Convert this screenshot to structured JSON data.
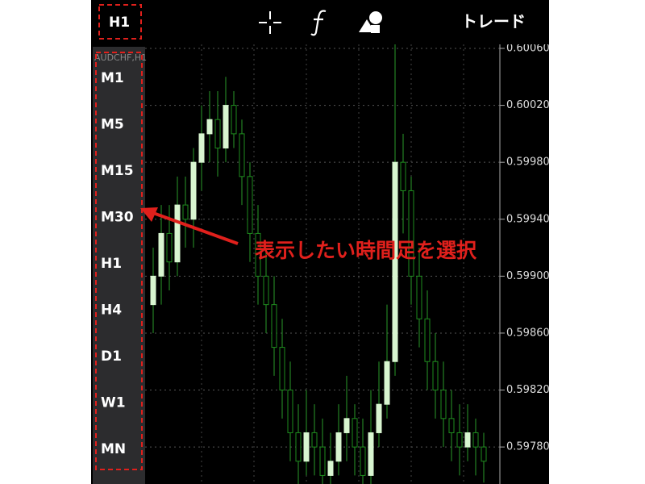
{
  "top_bar": {
    "timeframe": "H1",
    "trade": "トレード"
  },
  "timeframe_menu": {
    "items": [
      "M1",
      "M5",
      "M15",
      "M30",
      "H1",
      "H4",
      "D1",
      "W1",
      "MN"
    ]
  },
  "annotation": "表示したい時間足を選択",
  "chart_data": {
    "type": "candlestick",
    "symbol": "AUDCHF,H1",
    "open": [
      0.5988,
      0.599,
      0.5993,
      0.5991,
      0.5995,
      0.5994,
      0.5998,
      0.6,
      0.6001,
      0.5999,
      0.6002,
      0.6,
      0.5997,
      0.5993,
      0.599,
      0.5988,
      0.5985,
      0.5982,
      0.5979,
      0.5977,
      0.5979,
      0.5978,
      0.5976,
      0.5977,
      0.5979,
      0.598,
      0.5978,
      0.5976,
      0.5979,
      0.5981,
      0.5984,
      0.5998,
      0.5996,
      0.599,
      0.5987,
      0.5984,
      0.5982,
      0.598,
      0.5979,
      0.5978,
      0.5979,
      0.5978
    ],
    "high": [
      0.5992,
      0.5995,
      0.5995,
      0.5997,
      0.5997,
      0.5999,
      0.6002,
      0.6003,
      0.6003,
      0.6004,
      0.6003,
      0.6001,
      0.5998,
      0.5995,
      0.5992,
      0.599,
      0.5987,
      0.5984,
      0.5981,
      0.5982,
      0.5981,
      0.598,
      0.5979,
      0.5981,
      0.5983,
      0.5981,
      0.598,
      0.5982,
      0.5984,
      0.5988,
      0.6007,
      0.6,
      0.5997,
      0.5992,
      0.5989,
      0.5986,
      0.5984,
      0.5982,
      0.5981,
      0.5981,
      0.598,
      0.5979
    ],
    "low": [
      0.5986,
      0.5988,
      0.5989,
      0.599,
      0.5992,
      0.5992,
      0.5996,
      0.5998,
      0.5997,
      0.5998,
      0.5999,
      0.5995,
      0.5991,
      0.5988,
      0.5986,
      0.5983,
      0.598,
      0.5977,
      0.5975,
      0.5976,
      0.5976,
      0.5975,
      0.5975,
      0.5976,
      0.5977,
      0.5976,
      0.5975,
      0.5975,
      0.5978,
      0.598,
      0.5983,
      0.5993,
      0.5988,
      0.5985,
      0.5982,
      0.598,
      0.5978,
      0.5977,
      0.5976,
      0.5977,
      0.5976,
      0.59755
    ],
    "close": [
      0.599,
      0.5993,
      0.5991,
      0.5995,
      0.5994,
      0.5998,
      0.6,
      0.6001,
      0.5999,
      0.6002,
      0.6,
      0.5997,
      0.5993,
      0.599,
      0.5988,
      0.5985,
      0.5982,
      0.5979,
      0.5977,
      0.5979,
      0.5978,
      0.5976,
      0.5977,
      0.5979,
      0.598,
      0.5978,
      0.5976,
      0.5979,
      0.5981,
      0.5984,
      0.5998,
      0.5996,
      0.599,
      0.5987,
      0.5984,
      0.5982,
      0.598,
      0.5979,
      0.5978,
      0.5979,
      0.5978,
      0.5977
    ],
    "ylim": [
      0.59754,
      0.60094
    ],
    "yticks": [
      {
        "value": 0.6006,
        "label": "0.60060"
      },
      {
        "value": 0.6002,
        "label": "0.60020"
      },
      {
        "value": 0.5998,
        "label": "0.59980"
      },
      {
        "value": 0.5994,
        "label": "0.59940"
      },
      {
        "value": 0.599,
        "label": "0.59900"
      },
      {
        "value": 0.5986,
        "label": "0.59860"
      },
      {
        "value": 0.5982,
        "label": "0.59820"
      },
      {
        "value": 0.5978,
        "label": "0.59780"
      }
    ],
    "grid": true,
    "up_color": "#d8f5d0",
    "down_color": "#1e8c1e",
    "wick_color": "#2a9a2a"
  }
}
